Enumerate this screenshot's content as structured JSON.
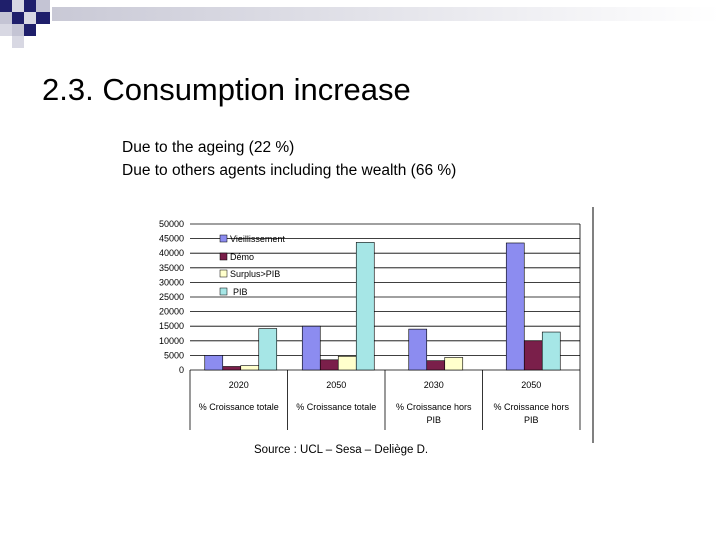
{
  "slide": {
    "title": "2.3. Consumption increase",
    "bullets": [
      "Due to the ageing (22 %)",
      "Due to others agents including the wealth (66 %)"
    ],
    "source": "Source : UCL – Sesa – Deliège D."
  },
  "colors": {
    "navy": "#1f1f6b",
    "grid": "#000000",
    "vieillissement": "#8c8cf0",
    "demo": "#7a1f4a",
    "surplus": "#ffffcc",
    "pib": "#a6e6e6"
  },
  "chart_data": {
    "type": "bar",
    "title": "",
    "ylim": [
      0,
      50000
    ],
    "yticks": [
      "50000",
      "45000",
      "40000",
      "35000",
      "30000",
      "25000",
      "20000",
      "15000",
      "10000",
      "5000",
      "0"
    ],
    "groups": [
      {
        "year": "2020",
        "label": [
          "% Croissance totale"
        ]
      },
      {
        "year": "2050",
        "label": [
          "% Croissance totale"
        ]
      },
      {
        "year": "2030",
        "label": [
          "% Croissance hors",
          "PIB"
        ]
      },
      {
        "year": "2050",
        "label": [
          "% Croissance hors",
          "PIB"
        ]
      }
    ],
    "series": [
      {
        "name": "Vieillissement",
        "values": [
          5000,
          15000,
          14000,
          43500
        ]
      },
      {
        "name": "Démo",
        "values": [
          1200,
          3500,
          3200,
          10000
        ]
      },
      {
        "name": "Surplus>PIB",
        "values": [
          1500,
          4700,
          4300,
          null
        ]
      },
      {
        "name": "PIB",
        "values": [
          14200,
          43700,
          null,
          13000
        ]
      }
    ],
    "group_series_order": [
      [
        0,
        1,
        2,
        3
      ],
      [
        0,
        1,
        2,
        3
      ],
      [
        0,
        1,
        2
      ],
      [
        0,
        1,
        3
      ]
    ],
    "legend": "top-left",
    "grid": true
  }
}
